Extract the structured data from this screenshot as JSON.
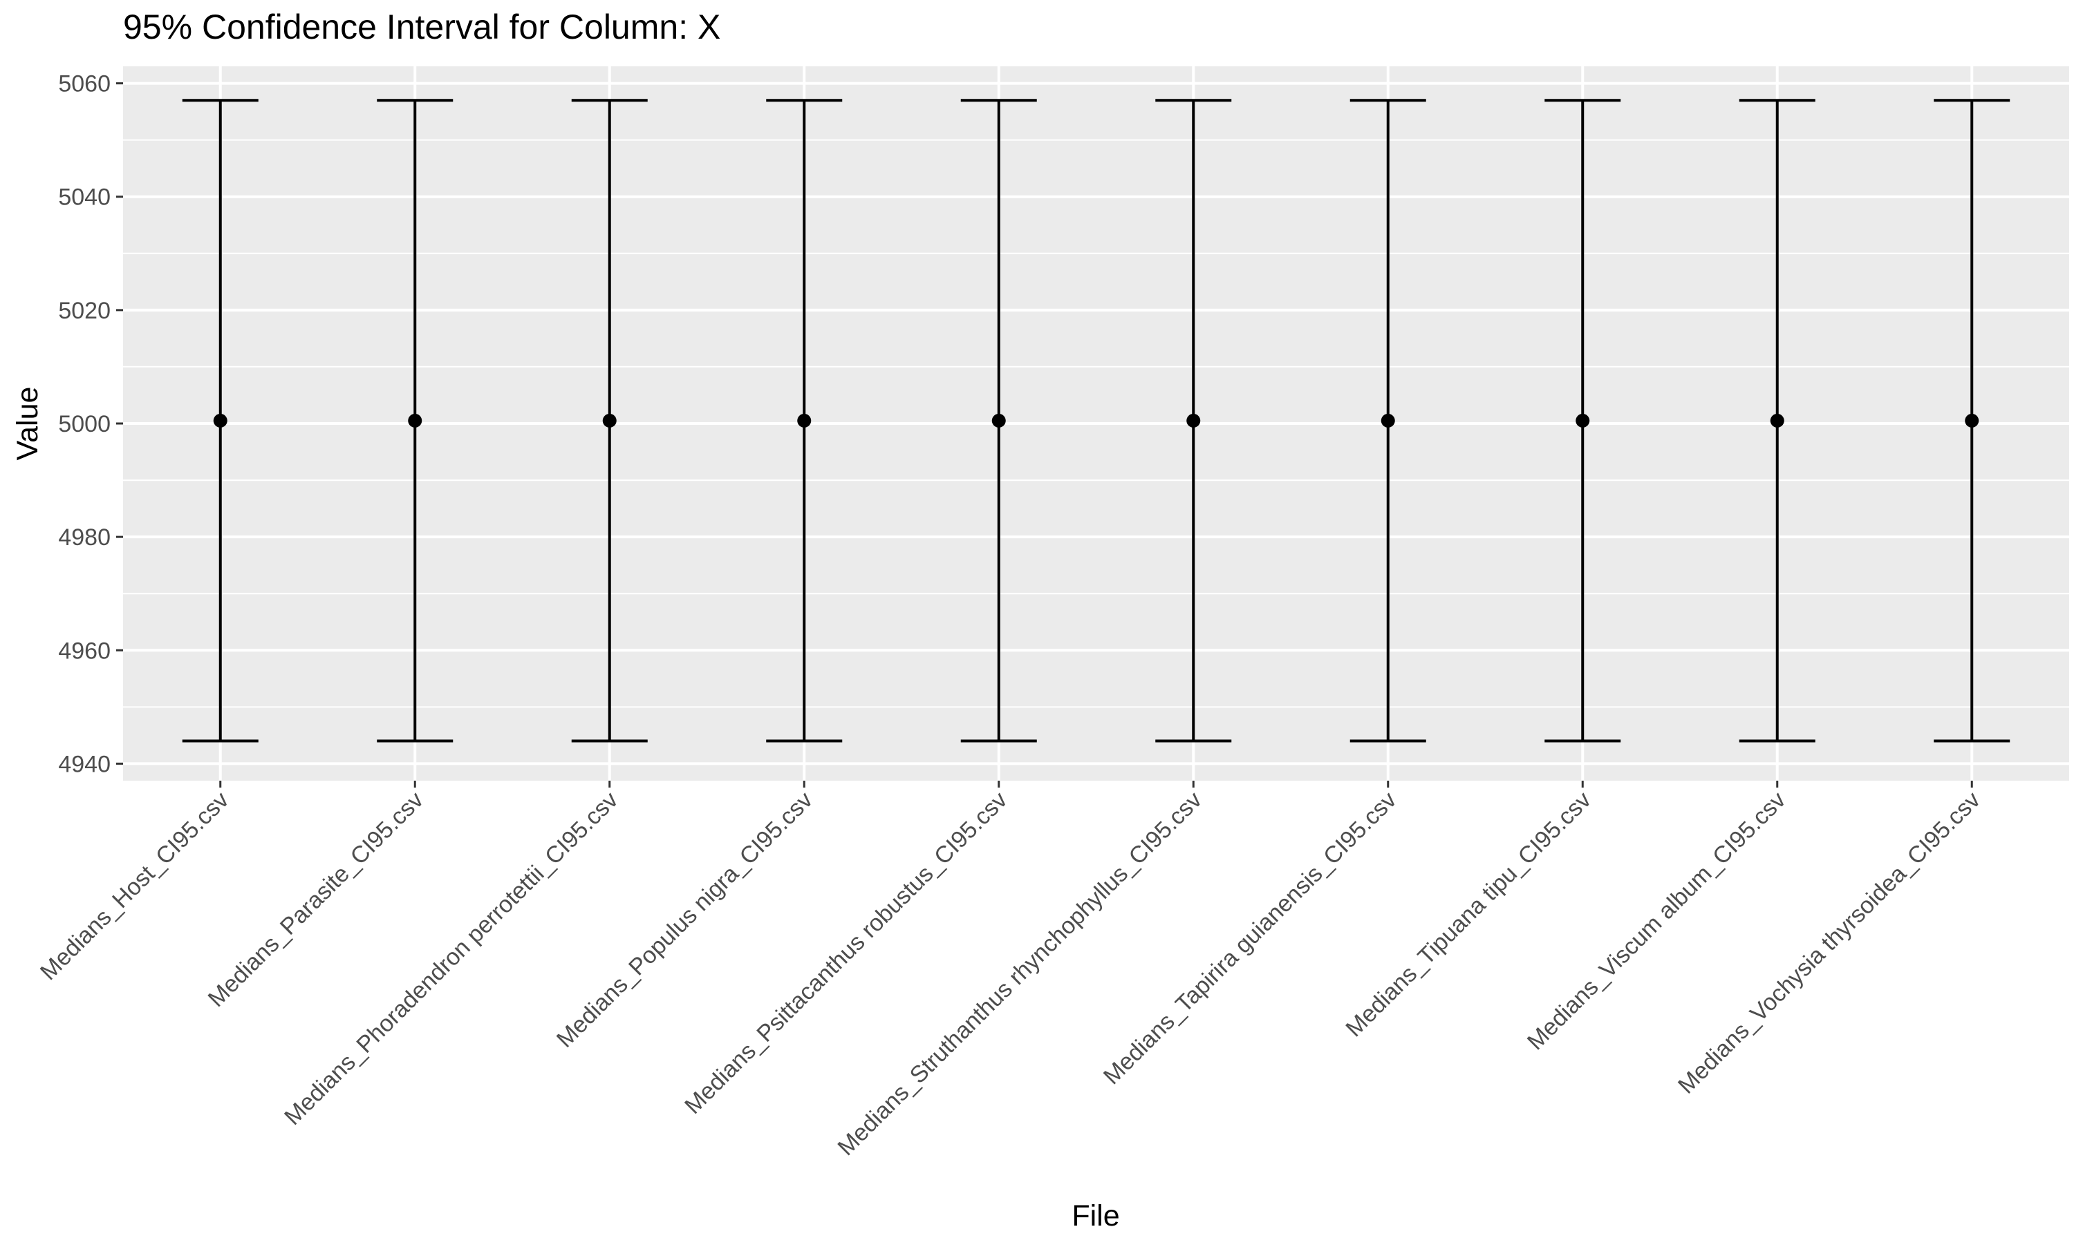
{
  "chart_data": {
    "type": "errorbar",
    "title": "95% Confidence Interval for Column: X",
    "xlabel": "File",
    "ylabel": "Value",
    "ylim": [
      4937,
      5063
    ],
    "yticks": [
      4940,
      4960,
      4980,
      5000,
      5020,
      5040,
      5060
    ],
    "y_minor_gridlines": true,
    "grid": true,
    "legend": "none",
    "categories": [
      "Medians_Host_CI95.csv",
      "Medians_Parasite_CI95.csv",
      "Medians_Phoradendron perrotettii_CI95.csv",
      "Medians_Populus nigra_CI95.csv",
      "Medians_Psittacanthus robustus_CI95.csv",
      "Medians_Struthanthus rhynchophyllus_CI95.csv",
      "Medians_Tapirira guianensis_CI95.csv",
      "Medians_Tipuana tipu_CI95.csv",
      "Medians_Viscum album_CI95.csv",
      "Medians_Vochysia thyrsoidea_CI95.csv"
    ],
    "center": [
      5000.5,
      5000.5,
      5000.5,
      5000.5,
      5000.5,
      5000.5,
      5000.5,
      5000.5,
      5000.5,
      5000.5
    ],
    "lower": [
      4944,
      4944,
      4944,
      4944,
      4944,
      4944,
      4944,
      4944,
      4944,
      4944
    ],
    "upper": [
      5057,
      5057,
      5057,
      5057,
      5057,
      5057,
      5057,
      5057,
      5057,
      5057
    ],
    "colors": {
      "panel": "#EBEBEB",
      "gridline": "#FFFFFF",
      "mark": "#000000",
      "tick_text": "#4D4D4D",
      "axis_text": "#000000"
    }
  }
}
